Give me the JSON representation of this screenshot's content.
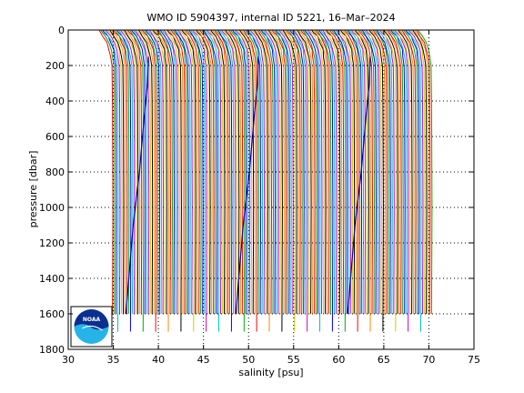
{
  "chart_data": {
    "type": "line",
    "title": "WMO ID 5904397, internal ID 5221, 16–Mar–2024",
    "xlabel": "salinity [psu]",
    "ylabel": "pressure [dbar]",
    "xlim": [
      30,
      75
    ],
    "ylim": [
      1800,
      0
    ],
    "y_reversed": true,
    "xticks": [
      30,
      35,
      40,
      45,
      50,
      55,
      60,
      65,
      70,
      75
    ],
    "yticks": [
      0,
      200,
      400,
      600,
      800,
      1000,
      1200,
      1400,
      1600,
      1800
    ],
    "grid": true,
    "grid_style": "dotted",
    "profile_offset_psu": 0.2,
    "profile_count": 178,
    "first_profile_surface_salinity": 33.4,
    "deep_salinity_offset": 1.5,
    "cycle_colors": [
      "#ff0000",
      "#00aa00",
      "#0000ff",
      "#00c0c0",
      "#cc00cc",
      "#cccc00",
      "#000000",
      "#ff8800"
    ],
    "highlighted_profile_bases": [
      38.8,
      51.0,
      63.4
    ],
    "logo": {
      "text": "NOAA",
      "colors": [
        "#0a2f8f",
        "#26b4e8"
      ]
    }
  }
}
